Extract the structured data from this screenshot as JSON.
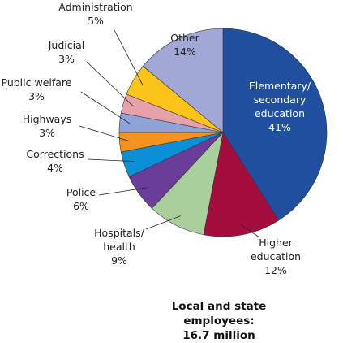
{
  "chart_data": {
    "type": "pie",
    "title": "Local and state employees:\n16.7 million",
    "categories": [
      "Elementary/\nsecondary\neducation",
      "Higher\neducation",
      "Hospitals/\nhealth",
      "Police",
      "Corrections",
      "Highways",
      "Public welfare",
      "Judicial",
      "Administration",
      "Other"
    ],
    "values": [
      41,
      12,
      9,
      6,
      4,
      3,
      3,
      3,
      5,
      14
    ],
    "value_labels": [
      "41%",
      "12%",
      "9%",
      "6%",
      "4%",
      "3%",
      "3%",
      "3%",
      "5%",
      "14%"
    ],
    "colors": [
      "#1f4f9e",
      "#a50d3e",
      "#a9cf9c",
      "#6a3d9a",
      "#0b8fd6",
      "#f6921e",
      "#8ea4d8",
      "#e7a1a8",
      "#fcc419",
      "#a2a8d6"
    ]
  }
}
